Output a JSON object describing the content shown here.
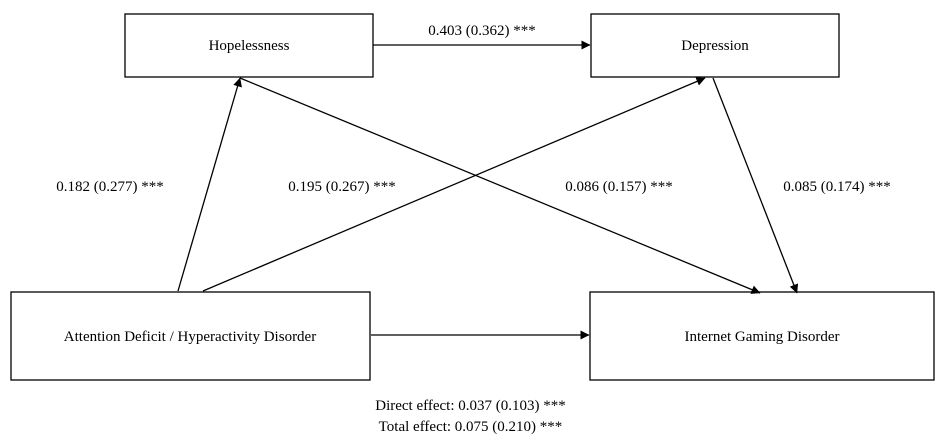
{
  "nodes": {
    "hopelessness": "Hopelessness",
    "depression": "Depression",
    "adhd": "Attention Deficit / Hyperactivity Disorder",
    "igd": "Internet Gaming Disorder"
  },
  "paths": {
    "hopelessness_to_depression": "0.403 (0.362) ***",
    "adhd_to_hopelessness": "0.182 (0.277) ***",
    "adhd_to_depression": "0.195 (0.267) ***",
    "hopelessness_to_igd": "0.086 (0.157) ***",
    "depression_to_igd": "0.085 (0.174) ***"
  },
  "effects": {
    "direct": "Direct effect: 0.037 (0.103) ***",
    "total": "Total effect: 0.075 (0.210) ***"
  }
}
